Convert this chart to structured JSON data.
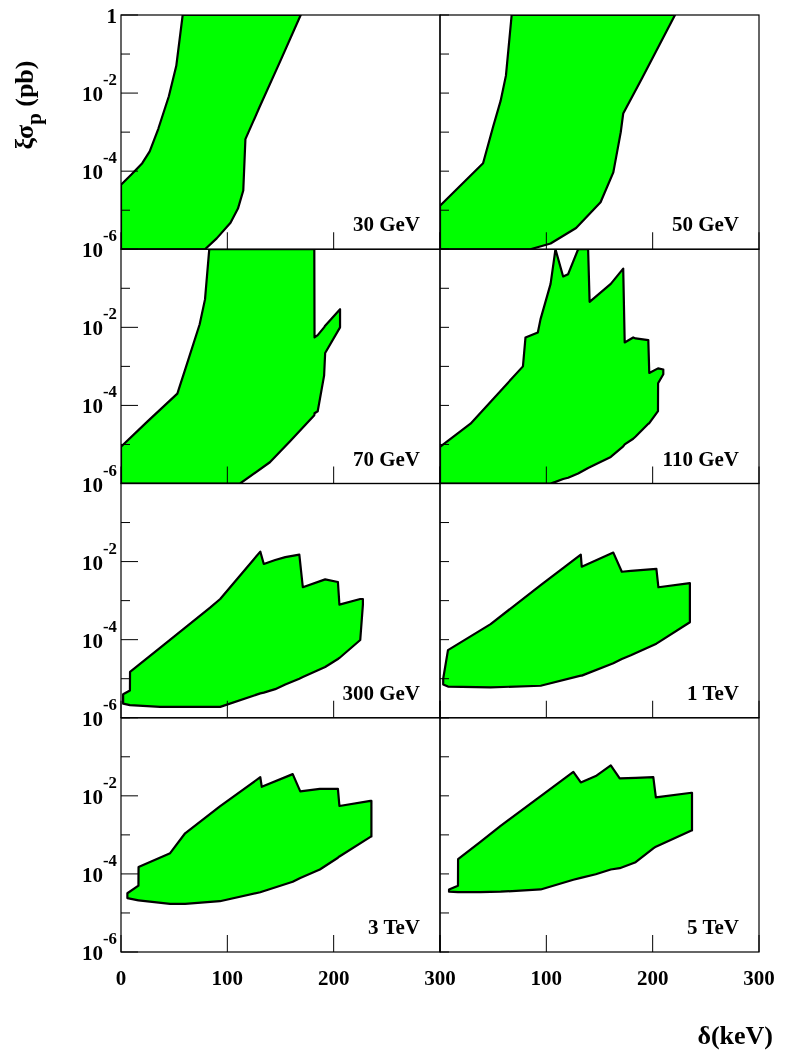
{
  "chart_data": [
    {
      "type": "area",
      "ylabel": "ξσ$_{p}$ (pb)",
      "annotations": [
        "30 GeV"
      ],
      "log": true,
      "xlim": [
        0,
        300
      ],
      "ylim": [
        1e-06,
        1
      ],
      "tick_labels": "y",
      "xticks": [
        0,
        100,
        200,
        300
      ],
      "yticks": [
        1,
        {
          "value": 0.1,
          "label": null
        },
        {
          "value": 0.01,
          "label": "10$^{-2}$"
        },
        {
          "value": 0.001,
          "label": null
        },
        {
          "value": 0.0001,
          "label": "10$^{-4}$"
        },
        {
          "value": 1e-05,
          "label": null
        },
        {
          "value": 1e-06,
          "label": "10$^{-6}$"
        }
      ],
      "series": [
        {
          "color": "#00ff00",
          "x": [
            0,
            10,
            20,
            27,
            35,
            45,
            52,
            58,
            79,
            90,
            103,
            110,
            115,
            117,
            130,
            150,
            169
          ],
          "values": [
            null,
            null,
            null,
            null,
            null,
            null,
            null,
            null,
            null,
            null,
            null,
            null,
            null,
            null,
            null,
            null,
            null
          ],
          "upper": [
            4.5e-05,
            8.3e-05,
            0.00016,
            0.00032,
            0.0012,
            0.0083,
            0.05,
            1,
            1,
            1,
            1,
            1,
            1,
            1,
            1,
            1,
            1
          ],
          "lower": [
            1e-06,
            1e-06,
            1e-06,
            1e-06,
            1e-06,
            1e-06,
            1e-06,
            1e-06,
            1e-06,
            1.9e-06,
            4.8e-06,
            1.1e-05,
            3.2e-05,
            0.00066,
            0.0042,
            0.068,
            1
          ]
        }
      ]
    },
    {
      "type": "area",
      "annotations": [
        "50 GeV"
      ],
      "log": true,
      "xlim": [
        0,
        300
      ],
      "ylim": [
        1e-06,
        1
      ],
      "tick_labels": false,
      "xticks": [
        0,
        100,
        200,
        300
      ],
      "yticks": [
        {
          "value": 1,
          "label": null
        },
        {
          "value": 0.1,
          "label": null
        },
        {
          "value": 0.01,
          "label": null
        },
        {
          "value": 0.001,
          "label": null
        },
        {
          "value": 0.0001,
          "label": null
        },
        {
          "value": 1e-05,
          "label": null
        },
        {
          "value": 1e-06,
          "label": null
        }
      ],
      "series": [
        {
          "color": "#00ff00",
          "x": [
            0,
            20,
            40.5,
            50,
            57,
            62,
            67.4,
            85,
            104,
            128,
            151,
            163,
            170,
            172.3,
            190,
            221
          ],
          "values": [
            null,
            null,
            null,
            null,
            null,
            null,
            null,
            null,
            null,
            null,
            null,
            null,
            null,
            null,
            null,
            null
          ],
          "upper": [
            1.3e-05,
            4.5e-05,
            0.00016,
            0.0014,
            0.0063,
            0.028,
            1,
            1,
            1,
            1,
            1,
            1,
            1,
            1,
            1,
            1
          ],
          "lower": [
            1e-06,
            1e-06,
            1e-06,
            1e-06,
            1e-06,
            1e-06,
            1e-06,
            1e-06,
            1.4e-06,
            3.5e-06,
            1.6e-05,
            9.3e-05,
            0.001,
            0.003,
            0.024,
            1
          ]
        }
      ]
    },
    {
      "type": "area",
      "annotations": [
        "70 GeV"
      ],
      "log": true,
      "xlim": [
        0,
        300
      ],
      "ylim": [
        1e-06,
        1
      ],
      "tick_labels": "y",
      "xticks": [
        0,
        100,
        200,
        300
      ],
      "yticks": [
        {
          "value": 1,
          "label": null
        },
        {
          "value": 0.1,
          "label": null
        },
        {
          "value": 0.01,
          "label": "10$^{-2}$"
        },
        {
          "value": 0.001,
          "label": null
        },
        {
          "value": 0.0001,
          "label": "10$^{-4}$"
        },
        {
          "value": 1e-05,
          "label": null
        },
        {
          "value": 1e-06,
          "label": "10$^{-6}$"
        }
      ],
      "series": [
        {
          "color": "#00ff00",
          "x": [
            0,
            25,
            53,
            60,
            74,
            79,
            83,
            112,
            140,
            159,
            181.8,
            182,
            185,
            191,
            192,
            206
          ],
          "values": [
            null,
            null,
            null,
            null,
            null,
            null,
            null,
            null,
            null,
            null,
            null,
            null,
            null,
            null,
            null,
            null
          ],
          "upper": [
            8.7e-06,
            3.9e-05,
            0.0002,
            0.00078,
            0.012,
            0.052,
            1,
            1,
            1,
            1,
            1,
            0.0055,
            0.0063,
            0.01,
            0.011,
            0.029
          ],
          "lower": [
            1e-06,
            1e-06,
            1e-06,
            1e-06,
            1e-06,
            1e-06,
            1e-06,
            1e-06,
            3.5e-06,
            1.2e-05,
            5.6e-05,
            6.3e-05,
            7.1e-05,
            0.00058,
            0.0022,
            0.01
          ]
        }
      ]
    },
    {
      "type": "area",
      "annotations": [
        "110 GeV"
      ],
      "log": true,
      "xlim": [
        0,
        300
      ],
      "ylim": [
        1e-06,
        1
      ],
      "tick_labels": false,
      "xticks": [
        0,
        100,
        200,
        300
      ],
      "yticks": [
        {
          "value": 1,
          "label": null
        },
        {
          "value": 0.1,
          "label": null
        },
        {
          "value": 0.01,
          "label": null
        },
        {
          "value": 0.001,
          "label": null
        },
        {
          "value": 0.0001,
          "label": null
        },
        {
          "value": 1e-05,
          "label": null
        },
        {
          "value": 1e-06,
          "label": null
        }
      ],
      "series": [
        {
          "color": "#00ff00",
          "x": [
            0,
            28.7,
            78,
            80.4,
            92,
            94.5,
            104,
            108.6,
            115.8,
            120.5,
            129.9,
            139.3,
            140.7,
            160.6,
            172.3,
            173.7,
            181.7,
            184,
            195.9,
            196.8,
            205,
            205.1,
            210
          ],
          "values": [
            null,
            null,
            null,
            null,
            null,
            null,
            null,
            null,
            null,
            null,
            null,
            null,
            null,
            null,
            null,
            null,
            null,
            null,
            null,
            null,
            null,
            null,
            null
          ],
          "upper": [
            8.7e-06,
            3.4e-05,
            0.001,
            0.0055,
            0.0074,
            0.016,
            0.13,
            1,
            0.2,
            0.23,
            1,
            1,
            0.045,
            0.13,
            0.32,
            0.0041,
            0.0055,
            0.0052,
            0.0047,
            0.00068,
            0.00089,
            0.00089,
            0.00083
          ],
          "lower": [
            1e-06,
            1e-06,
            1e-06,
            1e-06,
            1e-06,
            1e-06,
            1e-06,
            1.1e-06,
            1.3e-06,
            1.4e-06,
            1.8e-06,
            2.5e-06,
            2.6e-06,
            4.8e-06,
            8.9e-06,
            1e-05,
            1.4e-05,
            1.6e-05,
            3.4e-05,
            3.5e-05,
            7.1e-05,
            0.00037,
            0.00063
          ]
        }
      ]
    },
    {
      "type": "area",
      "annotations": [
        "300 GeV"
      ],
      "log": true,
      "xlim": [
        0,
        300
      ],
      "ylim": [
        1e-06,
        1
      ],
      "tick_labels": "y",
      "xticks": [
        0,
        100,
        200,
        300
      ],
      "yticks": [
        {
          "value": 1,
          "label": null
        },
        {
          "value": 0.1,
          "label": null
        },
        {
          "value": 0.01,
          "label": "10$^{-2}$"
        },
        {
          "value": 0.001,
          "label": null
        },
        {
          "value": 0.0001,
          "label": "10$^{-4}$"
        },
        {
          "value": 1e-05,
          "label": null
        },
        {
          "value": 1e-06,
          "label": "10$^{-6}$"
        }
      ],
      "series": [
        {
          "color": "#00ff00",
          "x": [
            2,
            8.4,
            8.5,
            36.7,
            83.8,
            93.3,
            131,
            134.3,
            145,
            154.5,
            167.7,
            171,
            192,
            204,
            205.4,
            225,
            227.5
          ],
          "values": [
            null,
            null,
            null,
            null,
            null,
            null,
            null,
            null,
            null,
            null,
            null,
            null,
            null,
            null,
            null,
            null,
            null
          ],
          "upper": [
            4e-06,
            5e-06,
            1.5e-05,
            6.2e-05,
            0.00066,
            0.0011,
            0.018,
            0.0087,
            0.011,
            0.013,
            0.015,
            0.0022,
            0.0035,
            0.003,
            0.00079,
            0.0011,
            0.0011
          ],
          "lower": [
            2.3e-06,
            2.1e-06,
            2.1e-06,
            1.9e-06,
            1.9e-06,
            1.9e-06,
            4.2e-06,
            4.4e-06,
            5.4e-06,
            7.1e-06,
            1e-05,
            1.1e-05,
            2e-05,
            3.2e-05,
            3.4e-05,
            9.8e-05,
            0.00079
          ]
        }
      ]
    },
    {
      "type": "area",
      "annotations": [
        "1 TeV"
      ],
      "log": true,
      "xlim": [
        0,
        300
      ],
      "ylim": [
        1e-06,
        1
      ],
      "tick_labels": false,
      "xticks": [
        0,
        100,
        200,
        300
      ],
      "yticks": [
        {
          "value": 1,
          "label": null
        },
        {
          "value": 0.1,
          "label": null
        },
        {
          "value": 0.01,
          "label": null
        },
        {
          "value": 0.001,
          "label": null
        },
        {
          "value": 0.0001,
          "label": null
        },
        {
          "value": 1e-05,
          "label": null
        },
        {
          "value": 1e-06,
          "label": null
        }
      ],
      "series": [
        {
          "color": "#00ff00",
          "x": [
            3,
            7.5,
            47.6,
            94.7,
            132.4,
            133.3,
            163,
            171,
            179.5,
            203.5,
            205.4,
            235
          ],
          "values": [
            null,
            null,
            null,
            null,
            null,
            null,
            null,
            null,
            null,
            null,
            null,
            null
          ],
          "upper": [
            1e-05,
            5.4e-05,
            0.00025,
            0.0025,
            0.015,
            0.0074,
            0.017,
            0.0055,
            0.0058,
            0.0065,
            0.0022,
            0.0028
          ],
          "lower": [
            7.1e-06,
            6.3e-06,
            6e-06,
            6.6e-06,
            1.2e-05,
            1.2e-05,
            2.5e-05,
            3.2e-05,
            4e-05,
            7.9e-05,
            8.5e-05,
            0.00028
          ]
        }
      ]
    },
    {
      "type": "area",
      "annotations": [
        "3 TeV"
      ],
      "log": true,
      "xlim": [
        0,
        300
      ],
      "ylim": [
        1e-06,
        1
      ],
      "xticks": [
        0,
        100,
        200,
        300
      ],
      "yticks": [
        {
          "value": 1,
          "label": null
        },
        {
          "value": 0.1,
          "label": null
        },
        {
          "value": 0.01,
          "label": "10$^{-2}$"
        },
        {
          "value": 0.001,
          "label": null
        },
        {
          "value": 0.0001,
          "label": "10$^{-4}$"
        },
        {
          "value": 1e-05,
          "label": null
        },
        {
          "value": 1e-06,
          "label": "10$^{-6}$"
        }
      ],
      "series": [
        {
          "color": "#00ff00",
          "x": [
            6,
            16.4,
            16.5,
            46.2,
            60.3,
            93,
            131,
            132.4,
            161.5,
            168.6,
            187,
            204,
            205.4,
            234.6,
            235.5
          ],
          "values": [
            null,
            null,
            null,
            null,
            null,
            null,
            null,
            null,
            null,
            null,
            null,
            null,
            null,
            null,
            null
          ],
          "upper": [
            3.2e-05,
            5e-05,
            0.00015,
            0.00034,
            0.0011,
            0.0054,
            0.03,
            0.017,
            0.036,
            0.013,
            0.015,
            0.015,
            0.0055,
            0.0074,
            0.0074
          ],
          "lower": [
            2.4e-05,
            2.1e-05,
            2.1e-05,
            1.7e-05,
            1.7e-05,
            2e-05,
            3.4e-05,
            3.5e-05,
            6.3e-05,
            7.9e-05,
            0.00013,
            0.00026,
            0.00028,
            0.00089,
            0.00091
          ]
        }
      ]
    },
    {
      "type": "area",
      "annotations": [
        "5 TeV"
      ],
      "xlabel": "δ(keV)",
      "log": true,
      "xlim": [
        0,
        300
      ],
      "ylim": [
        1e-06,
        1
      ],
      "tick_labels": "x",
      "xticks": [
        {
          "value": 0,
          "label": null
        },
        100,
        200,
        300
      ],
      "yticks": [
        {
          "value": 1,
          "label": null
        },
        {
          "value": 0.1,
          "label": null
        },
        {
          "value": 0.01,
          "label": null
        },
        {
          "value": 0.001,
          "label": null
        },
        {
          "value": 0.0001,
          "label": null
        },
        {
          "value": 1e-05,
          "label": null
        },
        {
          "value": 1e-06,
          "label": null
        }
      ],
      "series": [
        {
          "color": "#00ff00",
          "x": [
            8.5,
            16.9,
            17,
            38,
            57,
            94.7,
            125.4,
            132.4,
            146.5,
            160.6,
            169,
            184,
            200.6,
            203,
            236.5,
            237
          ],
          "values": [
            null,
            null,
            null,
            null,
            null,
            null,
            null,
            null,
            null,
            null,
            null,
            null,
            null,
            null,
            null,
            null
          ],
          "upper": [
            4e-05,
            5e-05,
            0.00024,
            0.00066,
            0.0017,
            0.0098,
            0.041,
            0.022,
            0.032,
            0.06,
            0.028,
            0.029,
            0.03,
            0.0091,
            0.012,
            0.012
          ],
          "lower": [
            3.5e-05,
            3.4e-05,
            3.4e-05,
            3.4e-05,
            3.5e-05,
            4e-05,
            7.1e-05,
            7.9e-05,
            9.8e-05,
            0.00013,
            0.00014,
            0.0002,
            0.00045,
            0.0005,
            0.0013,
            0.0013
          ]
        }
      ]
    }
  ]
}
